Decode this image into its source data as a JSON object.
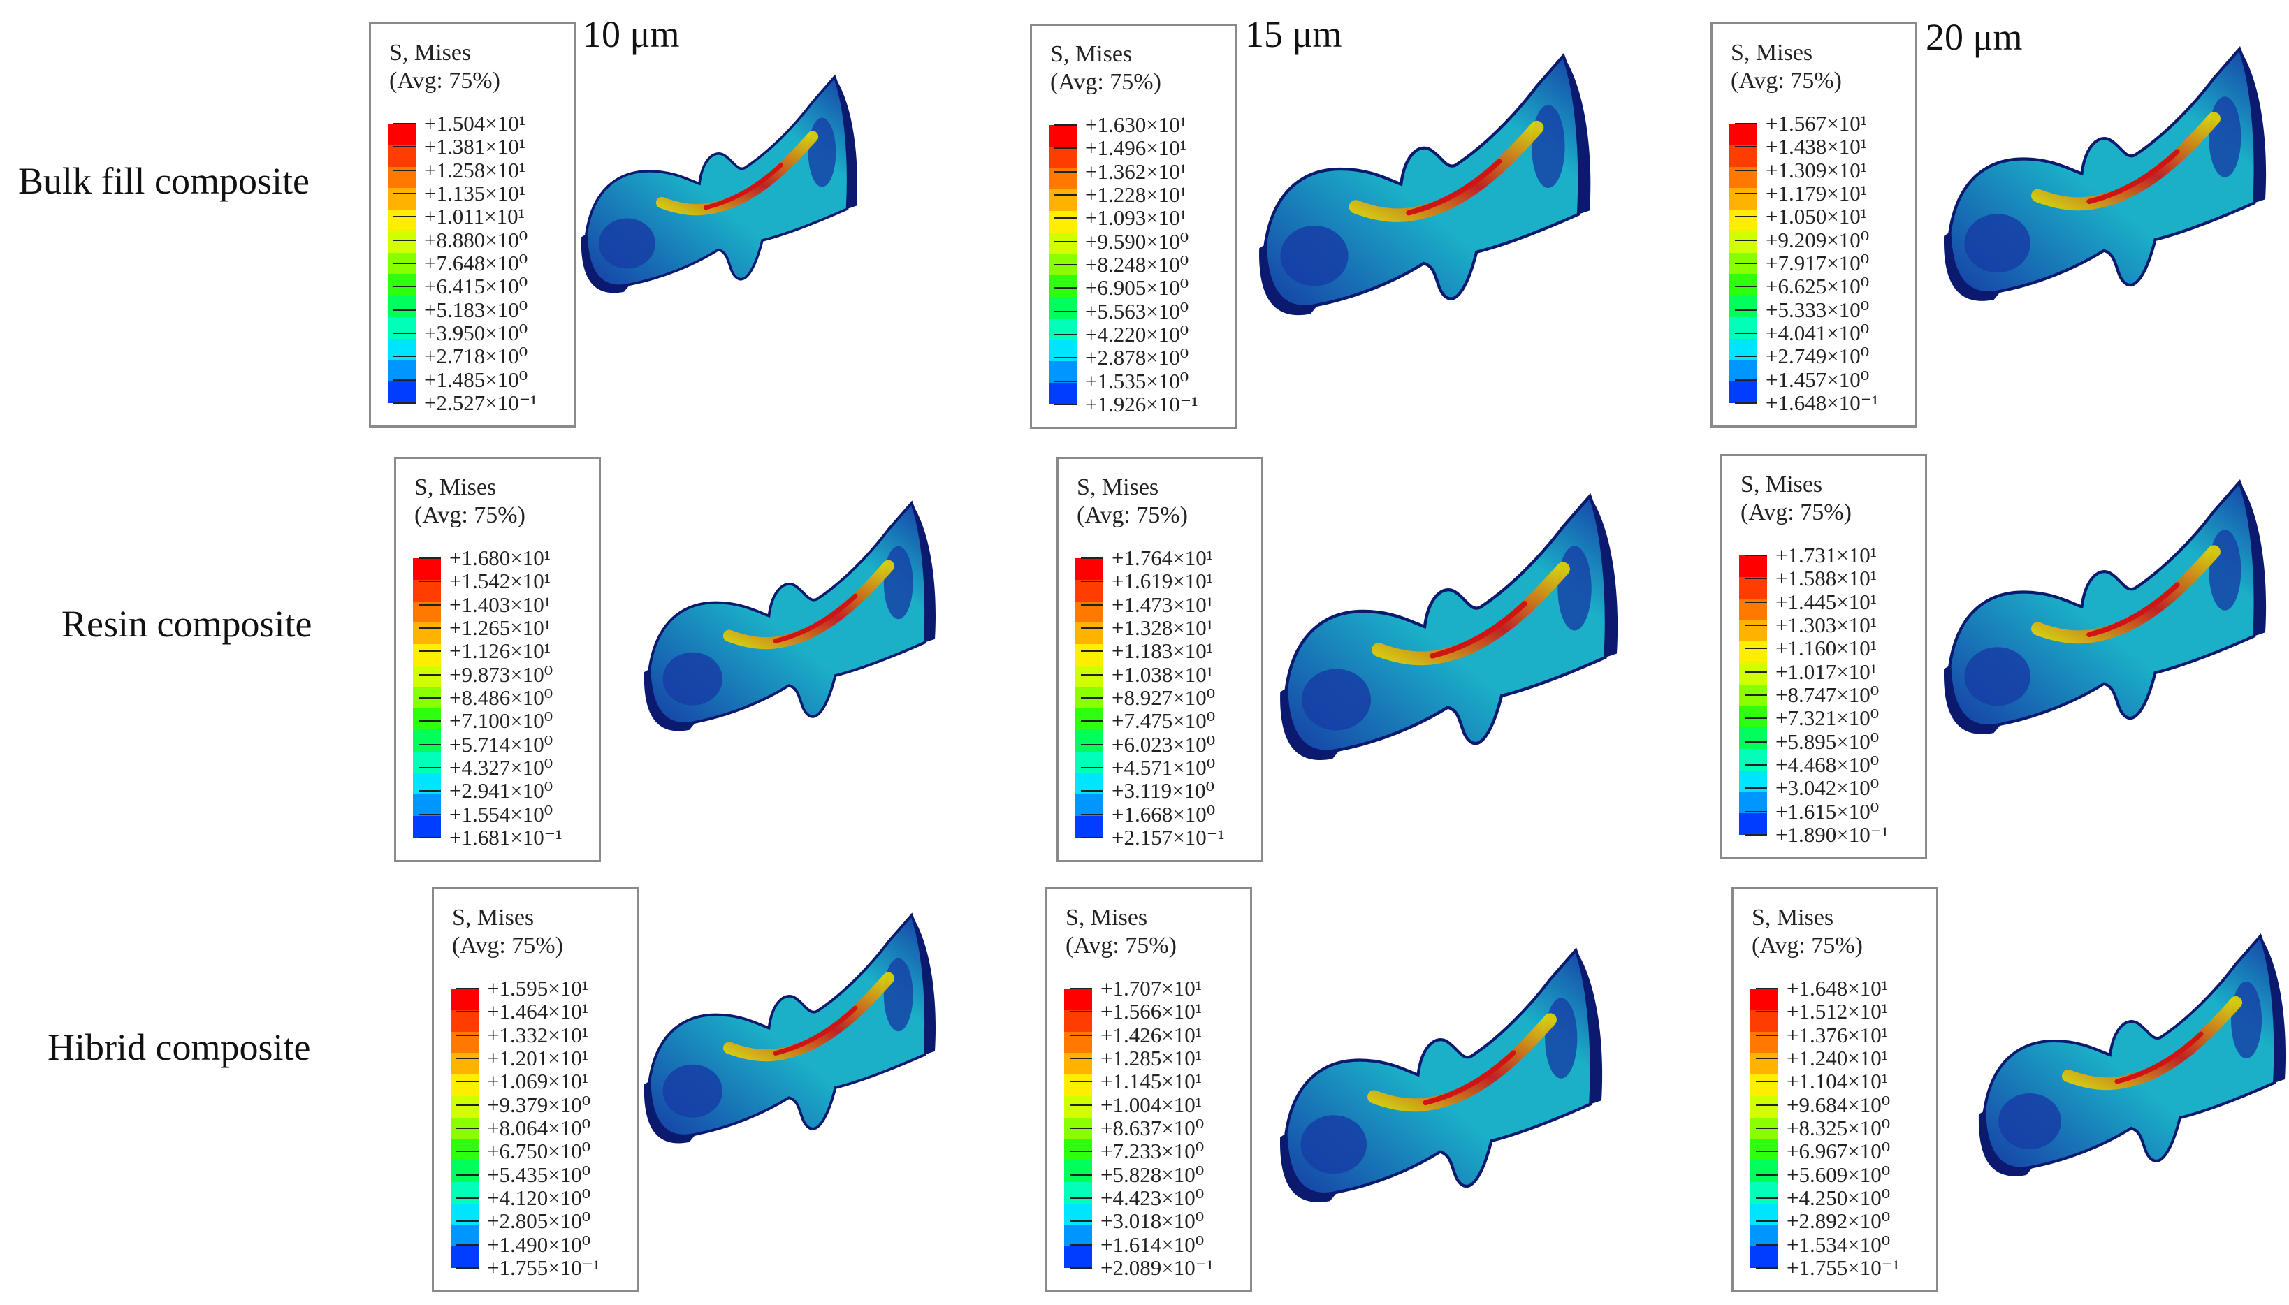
{
  "figure": {
    "columns": [
      "10 μm",
      "15 μm",
      "20 μm"
    ],
    "rows": [
      "Bulk fill composite",
      "Resin composite",
      "Hibrid composite"
    ],
    "legend_title": "S, Mises",
    "legend_subtitle": "(Avg: 75%)",
    "colormap": [
      "#ff0000",
      "#ff3d00",
      "#ff7800",
      "#ffb200",
      "#ffee00",
      "#cfff00",
      "#8aff00",
      "#2eff0f",
      "#00ff5c",
      "#00ffb8",
      "#00e5ff",
      "#0096ff",
      "#003dff"
    ],
    "model_colors": {
      "edge": "#0b1a6e",
      "base": "#163ea6",
      "mid": "#1bb0c8",
      "hot": "#e8d600",
      "peak": "#d01414"
    },
    "panels": [
      {
        "row": 0,
        "col": 0,
        "values": [
          "+1.504×10¹",
          "+1.381×10¹",
          "+1.258×10¹",
          "+1.135×10¹",
          "+1.011×10¹",
          "+8.880×10⁰",
          "+7.648×10⁰",
          "+6.415×10⁰",
          "+5.183×10⁰",
          "+3.950×10⁰",
          "+2.718×10⁰",
          "+1.485×10⁰",
          "+2.527×10⁻¹"
        ]
      },
      {
        "row": 0,
        "col": 1,
        "values": [
          "+1.630×10¹",
          "+1.496×10¹",
          "+1.362×10¹",
          "+1.228×10¹",
          "+1.093×10¹",
          "+9.590×10⁰",
          "+8.248×10⁰",
          "+6.905×10⁰",
          "+5.563×10⁰",
          "+4.220×10⁰",
          "+2.878×10⁰",
          "+1.535×10⁰",
          "+1.926×10⁻¹"
        ]
      },
      {
        "row": 0,
        "col": 2,
        "values": [
          "+1.567×10¹",
          "+1.438×10¹",
          "+1.309×10¹",
          "+1.179×10¹",
          "+1.050×10¹",
          "+9.209×10⁰",
          "+7.917×10⁰",
          "+6.625×10⁰",
          "+5.333×10⁰",
          "+4.041×10⁰",
          "+2.749×10⁰",
          "+1.457×10⁰",
          "+1.648×10⁻¹"
        ]
      },
      {
        "row": 1,
        "col": 0,
        "values": [
          "+1.680×10¹",
          "+1.542×10¹",
          "+1.403×10¹",
          "+1.265×10¹",
          "+1.126×10¹",
          "+9.873×10⁰",
          "+8.486×10⁰",
          "+7.100×10⁰",
          "+5.714×10⁰",
          "+4.327×10⁰",
          "+2.941×10⁰",
          "+1.554×10⁰",
          "+1.681×10⁻¹"
        ]
      },
      {
        "row": 1,
        "col": 1,
        "values": [
          "+1.764×10¹",
          "+1.619×10¹",
          "+1.473×10¹",
          "+1.328×10¹",
          "+1.183×10¹",
          "+1.038×10¹",
          "+8.927×10⁰",
          "+7.475×10⁰",
          "+6.023×10⁰",
          "+4.571×10⁰",
          "+3.119×10⁰",
          "+1.668×10⁰",
          "+2.157×10⁻¹"
        ]
      },
      {
        "row": 1,
        "col": 2,
        "values": [
          "+1.731×10¹",
          "+1.588×10¹",
          "+1.445×10¹",
          "+1.303×10¹",
          "+1.160×10¹",
          "+1.017×10¹",
          "+8.747×10⁰",
          "+7.321×10⁰",
          "+5.895×10⁰",
          "+4.468×10⁰",
          "+3.042×10⁰",
          "+1.615×10⁰",
          "+1.890×10⁻¹"
        ]
      },
      {
        "row": 2,
        "col": 0,
        "values": [
          "+1.595×10¹",
          "+1.464×10¹",
          "+1.332×10¹",
          "+1.201×10¹",
          "+1.069×10¹",
          "+9.379×10⁰",
          "+8.064×10⁰",
          "+6.750×10⁰",
          "+5.435×10⁰",
          "+4.120×10⁰",
          "+2.805×10⁰",
          "+1.490×10⁰",
          "+1.755×10⁻¹"
        ]
      },
      {
        "row": 2,
        "col": 1,
        "values": [
          "+1.707×10¹",
          "+1.566×10¹",
          "+1.426×10¹",
          "+1.285×10¹",
          "+1.145×10¹",
          "+1.004×10¹",
          "+8.637×10⁰",
          "+7.233×10⁰",
          "+5.828×10⁰",
          "+4.423×10⁰",
          "+3.018×10⁰",
          "+1.614×10⁰",
          "+2.089×10⁻¹"
        ]
      },
      {
        "row": 2,
        "col": 2,
        "values": [
          "+1.648×10¹",
          "+1.512×10¹",
          "+1.376×10¹",
          "+1.240×10¹",
          "+1.104×10¹",
          "+9.684×10⁰",
          "+8.325×10⁰",
          "+6.967×10⁰",
          "+5.609×10⁰",
          "+4.250×10⁰",
          "+2.892×10⁰",
          "+1.534×10⁰",
          "+1.755×10⁻¹"
        ]
      }
    ]
  }
}
